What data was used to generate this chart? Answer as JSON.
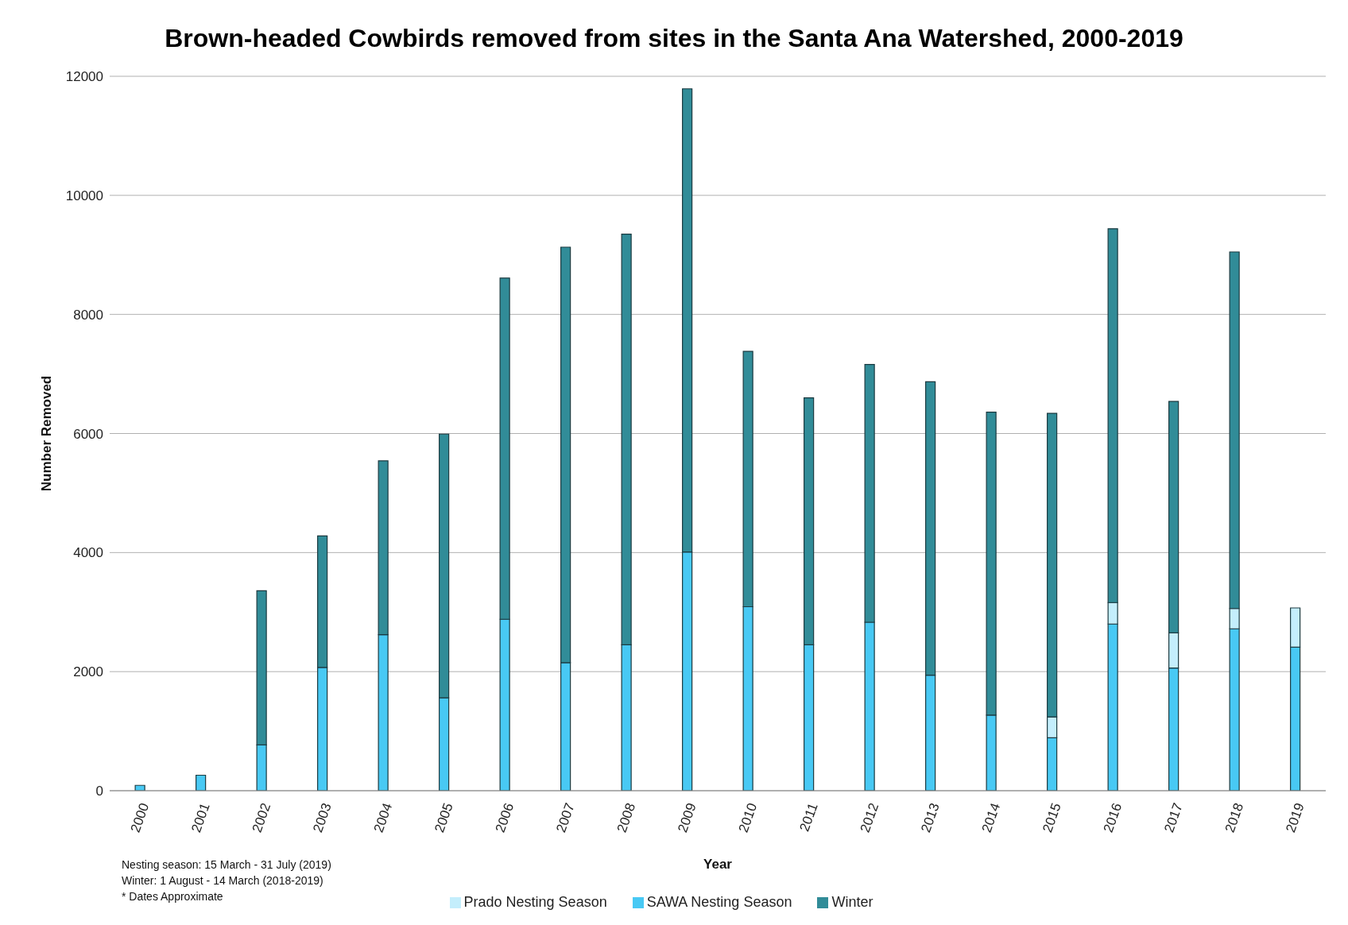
{
  "chart_data": {
    "type": "bar",
    "title": "Brown-headed Cowbirds removed from sites in the Santa Ana Watershed, 2000-2019",
    "xlabel": "Year",
    "ylabel": "Number Removed",
    "categories": [
      "2000",
      "2001",
      "2002",
      "2003",
      "2004",
      "2005",
      "2006",
      "2007",
      "2008",
      "2009",
      "2010",
      "2011",
      "2012",
      "2013",
      "2014",
      "2015",
      "2016",
      "2017",
      "2018",
      "2019"
    ],
    "stacked": true,
    "series": [
      {
        "name": "SAWA Nesting Season",
        "color": "#48c9f4",
        "values": [
          90,
          260,
          770,
          2070,
          2620,
          1560,
          2880,
          2150,
          2450,
          4010,
          3090,
          2450,
          2830,
          1940,
          1270,
          890,
          2800,
          2060,
          2720,
          2410
        ]
      },
      {
        "name": "Prado Nesting Season",
        "color": "#c4eefc",
        "values": [
          null,
          null,
          null,
          null,
          null,
          null,
          null,
          null,
          null,
          null,
          null,
          null,
          null,
          null,
          null,
          350,
          360,
          590,
          340,
          660
        ]
      },
      {
        "name": "Winter",
        "color": "#318c98",
        "values": [
          null,
          null,
          2590,
          2210,
          2920,
          4430,
          5730,
          6980,
          6900,
          7780,
          4290,
          4150,
          4330,
          4930,
          5090,
          5100,
          6280,
          3890,
          5990,
          null
        ]
      }
    ],
    "ylim": [
      0,
      12000
    ],
    "yticks": [
      0,
      2000,
      4000,
      6000,
      8000,
      10000,
      12000
    ],
    "grid": "y",
    "legend": "bottom",
    "annotations": [
      "Nesting season: 15 March - 31 July (2019)",
      "Winter: 1 August - 14 March (2018-2019)",
      "* Dates Approximate"
    ]
  }
}
